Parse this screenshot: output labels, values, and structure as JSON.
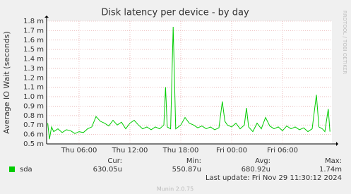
{
  "chart_data": {
    "type": "line",
    "title": "Disk latency per device - by day",
    "y_label": "Average IO Wait (seconds)",
    "side_text": "RRDTOOL / TOBI OETIKER",
    "footer": "Munin 2.0.75",
    "last_update": "Last update: Fri Nov 29 11:30:12 2024",
    "grid": true,
    "xlim": [
      2.17,
      35.83
    ],
    "xticks": [
      {
        "value": 6,
        "label": "Thu 06:00"
      },
      {
        "value": 12,
        "label": "Thu 12:00"
      },
      {
        "value": 18,
        "label": "Thu 18:00"
      },
      {
        "value": 24,
        "label": "Fri 00:00"
      },
      {
        "value": 30,
        "label": "Fri 06:00"
      }
    ],
    "ylim": [
      0.5,
      1.8
    ],
    "yticks": [
      {
        "value": 0.5,
        "label": "0.5 m"
      },
      {
        "value": 0.6,
        "label": "0.6 m"
      },
      {
        "value": 0.7,
        "label": "0.7 m"
      },
      {
        "value": 0.8,
        "label": "0.8 m"
      },
      {
        "value": 0.9,
        "label": "0.9 m"
      },
      {
        "value": 1.0,
        "label": "1.0 m"
      },
      {
        "value": 1.1,
        "label": "1.1 m"
      },
      {
        "value": 1.2,
        "label": "1.2 m"
      },
      {
        "value": 1.3,
        "label": "1.3 m"
      },
      {
        "value": 1.4,
        "label": "1.4 m"
      },
      {
        "value": 1.5,
        "label": "1.5 m"
      },
      {
        "value": 1.6,
        "label": "1.6 m"
      },
      {
        "value": 1.7,
        "label": "1.7 m"
      },
      {
        "value": 1.8,
        "label": "1.8 m"
      }
    ],
    "x": [
      2.3,
      2.5,
      2.75,
      3,
      3.5,
      4,
      4.5,
      5,
      5.5,
      6,
      6.5,
      7,
      7.5,
      8,
      8.5,
      9,
      9.5,
      10,
      10.5,
      11,
      11.5,
      12,
      12.5,
      13,
      13.5,
      14,
      14.5,
      15,
      15.5,
      16,
      16.2,
      16.4,
      16.8,
      17.1,
      17.4,
      18,
      18.5,
      19,
      19.5,
      20,
      20.5,
      21,
      21.5,
      22,
      22.5,
      22.9,
      23.2,
      23.5,
      24,
      24.5,
      25,
      25.5,
      25.75,
      26,
      26.5,
      27,
      27.5,
      28,
      28.5,
      29,
      29.5,
      30,
      30.5,
      31,
      31.5,
      32,
      32.5,
      33,
      33.5,
      34,
      34.3,
      34.7,
      35,
      35.4,
      35.6
    ],
    "series": [
      {
        "name": "sda",
        "color": "#00cc00",
        "values": [
          0.72,
          0.55,
          0.68,
          0.63,
          0.66,
          0.62,
          0.65,
          0.64,
          0.61,
          0.63,
          0.62,
          0.66,
          0.68,
          0.79,
          0.74,
          0.72,
          0.69,
          0.75,
          0.7,
          0.73,
          0.66,
          0.72,
          0.75,
          0.7,
          0.66,
          0.68,
          0.65,
          0.68,
          0.66,
          0.7,
          1.1,
          0.68,
          0.66,
          1.74,
          0.66,
          0.7,
          0.78,
          0.72,
          0.7,
          0.67,
          0.69,
          0.66,
          0.68,
          0.65,
          0.67,
          0.95,
          0.74,
          0.7,
          0.68,
          0.72,
          0.66,
          0.7,
          0.88,
          0.68,
          0.63,
          0.72,
          0.66,
          0.78,
          0.69,
          0.66,
          0.68,
          0.64,
          0.69,
          0.66,
          0.68,
          0.65,
          0.67,
          0.63,
          0.66,
          1.02,
          0.68,
          0.66,
          0.63,
          0.87,
          0.63
        ]
      }
    ],
    "legend": {
      "headers": [
        "Cur:",
        "Min:",
        "Avg:",
        "Max:"
      ],
      "values": [
        "630.05u",
        "550.87u",
        "680.92u",
        "1.74m"
      ]
    }
  }
}
